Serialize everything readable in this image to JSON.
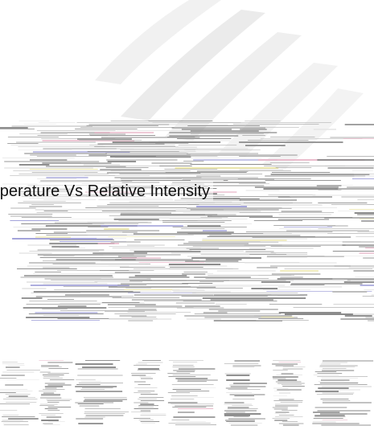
{
  "caption": "Temperature Vs Relative Intensity",
  "palette": {
    "background": "#ffffff",
    "band_dark": "#8a8a8a",
    "band_mid": "#bdbdbd",
    "band_light": "#e6e6e6",
    "glint_blue": "#9a9ad6",
    "glint_yellow": "#e9e4a6",
    "glint_pink": "#e8b6c8"
  }
}
